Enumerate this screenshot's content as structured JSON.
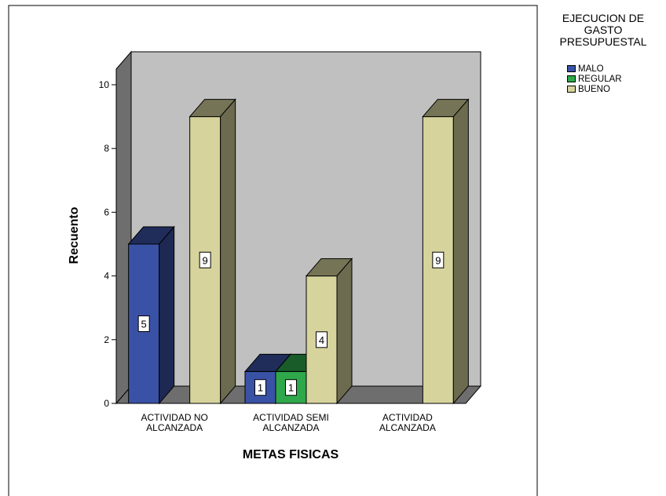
{
  "chart_data": {
    "type": "bar",
    "title": "",
    "xlabel": "METAS FISICAS",
    "ylabel": "Recuento",
    "ylim": [
      0,
      10
    ],
    "yticks": [
      "0",
      "2",
      "4",
      "6",
      "8",
      "10"
    ],
    "categories": [
      [
        "ACTIVIDAD NO",
        "ALCANZADA"
      ],
      [
        "ACTIVIDAD SEMI",
        "ALCANZADA"
      ],
      [
        "ACTIVIDAD",
        "ALCANZADA"
      ]
    ],
    "legend_title": [
      "EJECUCION DE",
      "GASTO",
      "PRESUPUESTAL"
    ],
    "legend_position": "top-right",
    "series": [
      {
        "name": "MALO",
        "color": "#3a52a6",
        "values": [
          5,
          1,
          null
        ]
      },
      {
        "name": "REGULAR",
        "color": "#2ea84a",
        "values": [
          null,
          1,
          null
        ]
      },
      {
        "name": "BUENO",
        "color": "#d7d39d",
        "values": [
          9,
          4,
          9
        ]
      }
    ]
  }
}
